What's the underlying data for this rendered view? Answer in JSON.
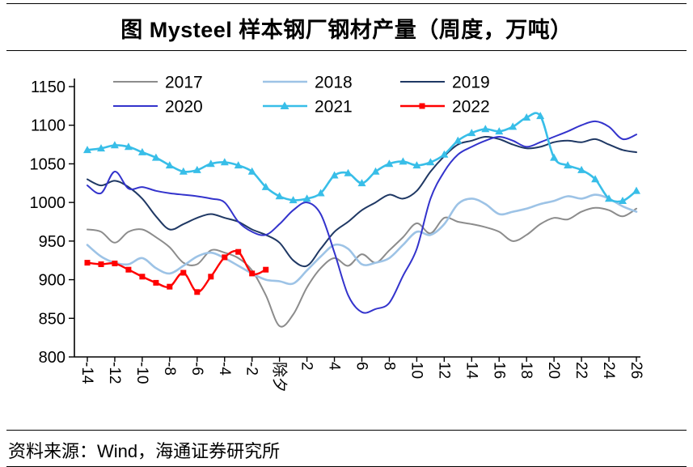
{
  "title": "图 Mysteel 样本钢厂钢材产量（周度，万吨）",
  "source": "资料来源：Wind，海通证券研究所",
  "chart_data": {
    "type": "line",
    "title": "图 Mysteel 样本钢厂钢材产量（周度，万吨）",
    "unit": "万吨",
    "frequency": "周度",
    "legend_position": "top-left-two-rows",
    "grid": false,
    "y_axis": {
      "min": 800,
      "max": 1150,
      "ticks": [
        800,
        850,
        900,
        950,
        1000,
        1050,
        1100,
        1150
      ]
    },
    "x_axis": {
      "min": -14,
      "max": 26,
      "note": "weeks relative to Chinese New Year's Eve (除夕 = 0), labels rotated 90°",
      "ticks": [
        {
          "x": -14,
          "label": "-14"
        },
        {
          "x": -12,
          "label": "-12"
        },
        {
          "x": -10,
          "label": "-10"
        },
        {
          "x": -8,
          "label": "-8"
        },
        {
          "x": -6,
          "label": "-6"
        },
        {
          "x": -4,
          "label": "-4"
        },
        {
          "x": -2,
          "label": "-2"
        },
        {
          "x": 0,
          "label": "除夕"
        },
        {
          "x": 2,
          "label": "2"
        },
        {
          "x": 4,
          "label": "4"
        },
        {
          "x": 6,
          "label": "6"
        },
        {
          "x": 8,
          "label": "8"
        },
        {
          "x": 10,
          "label": "10"
        },
        {
          "x": 12,
          "label": "12"
        },
        {
          "x": 14,
          "label": "14"
        },
        {
          "x": 16,
          "label": "16"
        },
        {
          "x": 18,
          "label": "18"
        },
        {
          "x": 20,
          "label": "20"
        },
        {
          "x": 22,
          "label": "22"
        },
        {
          "x": 24,
          "label": "24"
        },
        {
          "x": 26,
          "label": "26"
        }
      ]
    },
    "series": [
      {
        "name": "2017",
        "color": "#8C8C8C",
        "marker": "none",
        "x_start": -14,
        "x_step": 1,
        "values": [
          965,
          962,
          948,
          962,
          965,
          955,
          942,
          922,
          920,
          938,
          935,
          928,
          912,
          880,
          840,
          855,
          890,
          915,
          928,
          918,
          933,
          922,
          938,
          955,
          973,
          960,
          980,
          975,
          972,
          968,
          962,
          950,
          958,
          972,
          980,
          978,
          988,
          993,
          990,
          982,
          992
        ]
      },
      {
        "name": "2018",
        "color": "#9DC3E6",
        "marker": "none",
        "x_start": -14,
        "x_step": 1,
        "values": [
          945,
          930,
          922,
          920,
          928,
          915,
          908,
          918,
          930,
          935,
          928,
          918,
          908,
          900,
          898,
          895,
          912,
          930,
          945,
          940,
          920,
          922,
          928,
          945,
          962,
          958,
          972,
          998,
          1005,
          998,
          985,
          988,
          992,
          998,
          1002,
          1008,
          1005,
          1010,
          1005,
          995,
          988
        ]
      },
      {
        "name": "2019",
        "color": "#1F3864",
        "marker": "none",
        "x_start": -14,
        "x_step": 1,
        "values": [
          1030,
          1022,
          1028,
          1020,
          1005,
          982,
          965,
          972,
          980,
          985,
          980,
          975,
          965,
          958,
          948,
          925,
          918,
          940,
          962,
          975,
          990,
          1000,
          1010,
          1005,
          1015,
          1040,
          1060,
          1075,
          1080,
          1085,
          1082,
          1075,
          1070,
          1072,
          1078,
          1080,
          1078,
          1082,
          1075,
          1068,
          1065
        ]
      },
      {
        "name": "2020",
        "color": "#3333CC",
        "marker": "none",
        "x_start": -14,
        "x_step": 1,
        "values": [
          1022,
          1012,
          1040,
          1018,
          1020,
          1015,
          1012,
          1010,
          1008,
          1005,
          1000,
          975,
          962,
          958,
          972,
          990,
          1000,
          985,
          935,
          880,
          858,
          862,
          870,
          905,
          940,
          1005,
          1040,
          1062,
          1072,
          1080,
          1085,
          1080,
          1072,
          1078,
          1085,
          1092,
          1100,
          1105,
          1098,
          1082,
          1088
        ]
      },
      {
        "name": "2021",
        "color": "#38BEE8",
        "marker": "triangle",
        "x_start": -14,
        "x_step": 1,
        "values": [
          1068,
          1070,
          1074,
          1072,
          1065,
          1058,
          1048,
          1040,
          1042,
          1050,
          1052,
          1048,
          1040,
          1020,
          1008,
          1003,
          1005,
          1012,
          1035,
          1038,
          1025,
          1040,
          1050,
          1053,
          1048,
          1052,
          1062,
          1080,
          1090,
          1095,
          1092,
          1098,
          1110,
          1112,
          1058,
          1048,
          1042,
          1030,
          1005,
          1002,
          1015
        ]
      },
      {
        "name": "2022",
        "color": "#FF0000",
        "marker": "square",
        "x_start": -14,
        "x_step": 1,
        "values": [
          922,
          920,
          921,
          913,
          904,
          896,
          891,
          909,
          884,
          904,
          929,
          936,
          908,
          913
        ]
      }
    ]
  }
}
